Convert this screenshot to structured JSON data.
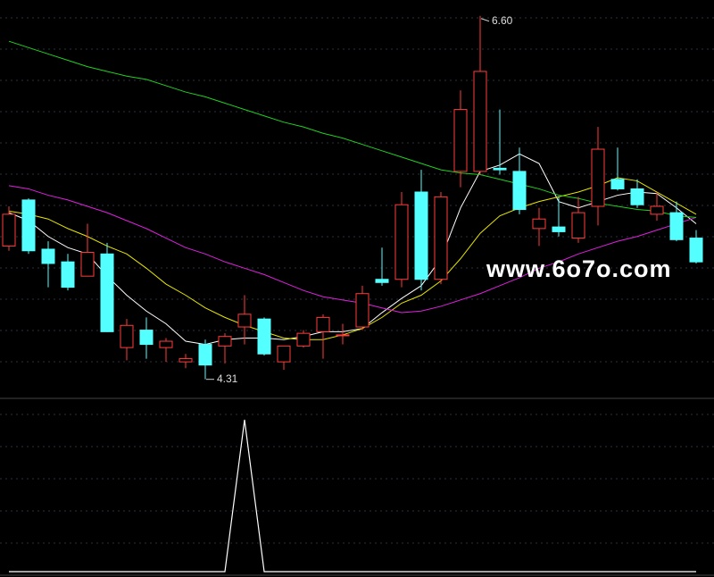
{
  "chart_data": {
    "type": "candlestick",
    "ylim": [
      4.19,
      6.7
    ],
    "up_color": "#ff3c3c",
    "down_color": "#54ffff",
    "open": [
      5.15,
      5.44,
      5.13,
      5.05,
      4.96,
      5.1,
      4.51,
      4.62,
      4.51,
      4.42,
      4.53,
      4.52,
      4.64,
      4.69,
      4.42,
      4.52,
      4.61,
      4.59,
      4.64,
      4.94,
      4.94,
      5.49,
      4.94,
      5.62,
      5.62,
      5.64,
      5.62,
      5.26,
      5.27,
      5.2,
      5.4,
      5.57,
      5.51,
      5.35,
      5.36,
      5.2
    ],
    "high": [
      5.4,
      5.45,
      5.18,
      5.1,
      5.29,
      5.17,
      4.69,
      4.7,
      4.57,
      4.47,
      4.56,
      4.6,
      4.84,
      4.7,
      4.52,
      4.62,
      4.72,
      4.66,
      4.9,
      5.14,
      5.49,
      5.63,
      5.49,
      6.13,
      6.6,
      6.01,
      5.77,
      5.39,
      5.46,
      5.46,
      5.9,
      5.77,
      5.57,
      5.49,
      5.43,
      5.25
    ],
    "low": [
      5.12,
      5.1,
      4.89,
      4.87,
      4.96,
      4.61,
      4.43,
      4.44,
      4.42,
      4.38,
      4.31,
      4.41,
      4.53,
      4.46,
      4.37,
      4.51,
      4.44,
      4.53,
      4.62,
      4.9,
      4.89,
      4.87,
      4.91,
      5.52,
      5.6,
      5.6,
      5.35,
      5.15,
      5.21,
      5.17,
      5.28,
      5.5,
      5.39,
      5.31,
      5.18,
      5.04
    ],
    "close": [
      5.35,
      5.12,
      5.04,
      4.89,
      5.11,
      4.61,
      4.65,
      4.53,
      4.55,
      4.44,
      4.4,
      4.58,
      4.72,
      4.47,
      4.52,
      4.6,
      4.7,
      4.59,
      4.85,
      4.92,
      5.41,
      4.94,
      5.46,
      6.01,
      6.25,
      5.63,
      5.38,
      5.32,
      5.24,
      5.36,
      5.76,
      5.51,
      5.41,
      5.4,
      5.19,
      5.05
    ],
    "series": [
      {
        "color": "#ffffff",
        "values": [
          5.36,
          5.31,
          5.21,
          5.14,
          5.1,
          4.96,
          4.84,
          4.74,
          4.66,
          4.55,
          4.53,
          4.56,
          4.57,
          4.57,
          4.56,
          4.58,
          4.61,
          4.61,
          4.63,
          4.73,
          4.82,
          4.9,
          5.07,
          5.39,
          5.62,
          5.66,
          5.73,
          5.67,
          5.43,
          5.39,
          5.43,
          5.47,
          5.49,
          5.48,
          5.39,
          5.29
        ]
      },
      {
        "color": "#e6e600",
        "values": [
          5.37,
          5.35,
          5.32,
          5.26,
          5.21,
          5.15,
          5.1,
          5.01,
          4.91,
          4.84,
          4.76,
          4.7,
          4.65,
          4.61,
          4.57,
          4.56,
          4.56,
          4.59,
          4.63,
          4.7,
          4.79,
          4.84,
          4.93,
          5.07,
          5.23,
          5.34,
          5.39,
          5.43,
          5.46,
          5.49,
          5.53,
          5.58,
          5.56,
          5.49,
          5.42,
          5.35
        ]
      },
      {
        "color": "#e020e0",
        "values": [
          5.53,
          5.51,
          5.47,
          5.44,
          5.4,
          5.36,
          5.31,
          5.26,
          5.2,
          5.14,
          5.1,
          5.05,
          5.01,
          4.97,
          4.92,
          4.87,
          4.83,
          4.81,
          4.79,
          4.76,
          4.73,
          4.74,
          4.77,
          4.81,
          4.85,
          4.9,
          4.95,
          5.01,
          5.05,
          5.1,
          5.14,
          5.18,
          5.21,
          5.25,
          5.29,
          5.33
        ]
      },
      {
        "color": "#20d020",
        "values": [
          6.44,
          6.4,
          6.36,
          6.32,
          6.28,
          6.25,
          6.22,
          6.2,
          6.16,
          6.12,
          6.09,
          6.05,
          6.01,
          5.97,
          5.93,
          5.9,
          5.86,
          5.83,
          5.79,
          5.75,
          5.71,
          5.67,
          5.63,
          5.61,
          5.6,
          5.57,
          5.54,
          5.51,
          5.47,
          5.45,
          5.42,
          5.4,
          5.38,
          5.37,
          5.34,
          5.33
        ]
      }
    ],
    "annotations": [
      {
        "text": "6.60",
        "value": 6.6
      },
      {
        "text": "4.31",
        "value": 4.31
      }
    ],
    "indicator": {
      "color": "#ffffff",
      "ylim": [
        0,
        1
      ],
      "values": [
        0,
        0,
        0,
        0,
        0,
        0,
        0,
        0,
        0,
        0,
        0,
        0,
        1,
        0,
        0,
        0,
        0,
        0,
        0,
        0,
        0,
        0,
        0,
        0,
        0,
        0,
        0,
        0,
        0,
        0,
        0,
        0,
        0,
        0,
        0,
        0
      ]
    },
    "watermark": "www.6o7o.com"
  }
}
